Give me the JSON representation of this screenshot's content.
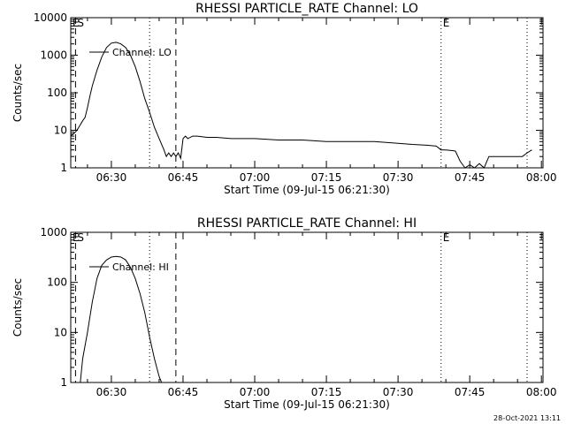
{
  "footer": {
    "timestamp": "28-Oct-2021 13:11"
  },
  "chart_data": [
    {
      "type": "line",
      "title": "RHESSI PARTICLE_RATE Channel: LO",
      "xlabel": "Start Time (09-Jul-15 06:21:30)",
      "ylabel": "Counts/sec",
      "yscale": "log",
      "ylim": [
        1,
        10000
      ],
      "xlim": [
        "06:21:30",
        "08:00:20"
      ],
      "x_ticks": [
        "06:30",
        "06:45",
        "07:00",
        "07:15",
        "07:30",
        "07:45",
        "08:00"
      ],
      "y_ticks": [
        "1",
        "10",
        "100",
        "1000",
        "10000"
      ],
      "grid": false,
      "legend": {
        "label": "Channel: LO",
        "position": "top-left"
      },
      "markers": [
        {
          "label": "E",
          "time": "06:21:30",
          "style": "dotted"
        },
        {
          "label": "S",
          "time": "06:22:30",
          "style": "dashed"
        },
        {
          "label": "",
          "time": "06:38:00",
          "style": "dotted"
        },
        {
          "label": "",
          "time": "06:43:30",
          "style": "dashed"
        },
        {
          "label": "E",
          "time": "07:39:00",
          "style": "dotted"
        },
        {
          "label": "",
          "time": "07:57:00",
          "style": "dotted"
        }
      ],
      "series": [
        {
          "name": "Channel: LO",
          "x": [
            "06:21:30",
            "06:22:00",
            "06:22:30",
            "06:23:00",
            "06:23:30",
            "06:24:00",
            "06:24:30",
            "06:25:00",
            "06:25:30",
            "06:26:00",
            "06:27:00",
            "06:28:00",
            "06:29:00",
            "06:30:00",
            "06:31:00",
            "06:32:00",
            "06:33:00",
            "06:34:00",
            "06:35:00",
            "06:36:00",
            "06:37:00",
            "06:38:00",
            "06:39:00",
            "06:40:00",
            "06:41:00",
            "06:41:30",
            "06:42:00",
            "06:42:30",
            "06:43:00",
            "06:43:30",
            "06:44:00",
            "06:44:30",
            "06:45:00",
            "06:45:30",
            "06:46:00",
            "06:47:00",
            "06:48:00",
            "06:50:00",
            "06:52:00",
            "06:55:00",
            "07:00:00",
            "07:05:00",
            "07:10:00",
            "07:15:00",
            "07:20:00",
            "07:25:00",
            "07:30:00",
            "07:33:00",
            "07:36:00",
            "07:38:00",
            "07:39:00",
            "07:40:00",
            "07:42:00",
            "07:43:00",
            "07:44:00",
            "07:45:00",
            "07:46:00",
            "07:47:00",
            "07:48:00",
            "07:49:00",
            "07:50:00",
            "07:52:00",
            "07:54:00",
            "07:56:00",
            "07:57:00",
            "07:58:00"
          ],
          "y": [
            7,
            8,
            9,
            11,
            14,
            18,
            22,
            40,
            80,
            150,
            400,
            900,
            1600,
            2100,
            2200,
            2000,
            1600,
            1000,
            500,
            200,
            70,
            30,
            12,
            6,
            3,
            2,
            2.5,
            2,
            2.5,
            2,
            2.5,
            1.8,
            6,
            7,
            6,
            7,
            7,
            6.5,
            6.5,
            6,
            6,
            5.5,
            5.5,
            5,
            5,
            5,
            4.5,
            4.2,
            4,
            3.8,
            3,
            3,
            2.8,
            1.5,
            1,
            1.2,
            1,
            1.3,
            1,
            2,
            2,
            2,
            2,
            2,
            2.5,
            3
          ]
        }
      ]
    },
    {
      "type": "line",
      "title": "RHESSI PARTICLE_RATE Channel: HI",
      "xlabel": "Start Time (09-Jul-15 06:21:30)",
      "ylabel": "Counts/sec",
      "yscale": "log",
      "ylim": [
        1,
        1000
      ],
      "xlim": [
        "06:21:30",
        "08:00:20"
      ],
      "x_ticks": [
        "06:30",
        "06:45",
        "07:00",
        "07:15",
        "07:30",
        "07:45",
        "08:00"
      ],
      "y_ticks": [
        "1",
        "10",
        "100",
        "1000"
      ],
      "grid": false,
      "legend": {
        "label": "Channel: HI",
        "position": "top-left"
      },
      "markers": [
        {
          "label": "E",
          "time": "06:21:30",
          "style": "dotted"
        },
        {
          "label": "S",
          "time": "06:22:30",
          "style": "dashed"
        },
        {
          "label": "",
          "time": "06:38:00",
          "style": "dotted"
        },
        {
          "label": "",
          "time": "06:43:30",
          "style": "dashed"
        },
        {
          "label": "E",
          "time": "07:39:00",
          "style": "dotted"
        },
        {
          "label": "",
          "time": "07:57:00",
          "style": "dotted"
        }
      ],
      "series": [
        {
          "name": "Channel: HI",
          "x": [
            "06:23:30",
            "06:24:00",
            "06:25:00",
            "06:26:00",
            "06:27:00",
            "06:28:00",
            "06:29:00",
            "06:30:00",
            "06:31:00",
            "06:32:00",
            "06:33:00",
            "06:34:00",
            "06:35:00",
            "06:36:00",
            "06:37:00",
            "06:38:00",
            "06:39:00",
            "06:40:00",
            "06:40:30"
          ],
          "y": [
            1,
            3,
            10,
            40,
            120,
            220,
            280,
            320,
            330,
            320,
            280,
            200,
            120,
            60,
            25,
            8,
            3,
            1.3,
            1
          ]
        }
      ]
    }
  ]
}
